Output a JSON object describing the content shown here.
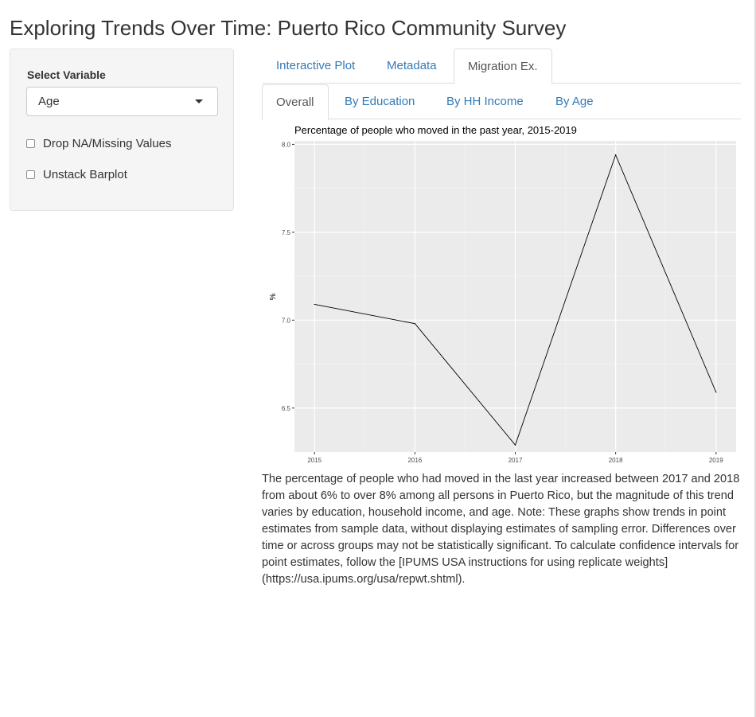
{
  "page": {
    "title": "Exploring Trends Over Time: Puerto Rico Community Survey"
  },
  "sidebar": {
    "select_label": "Select Variable",
    "selected_variable": "Age",
    "checkboxes": [
      {
        "label": "Drop NA/Missing Values",
        "checked": false
      },
      {
        "label": "Unstack Barplot",
        "checked": false
      }
    ]
  },
  "tabs": {
    "main": [
      {
        "label": "Interactive Plot",
        "active": false
      },
      {
        "label": "Metadata",
        "active": false
      },
      {
        "label": "Migration Ex.",
        "active": true
      }
    ],
    "sub": [
      {
        "label": "Overall",
        "active": true
      },
      {
        "label": "By Education",
        "active": false
      },
      {
        "label": "By HH Income",
        "active": false
      },
      {
        "label": "By Age",
        "active": false
      }
    ]
  },
  "chart_data": {
    "type": "line",
    "title": "Percentage of people who moved in the past year, 2015-2019",
    "xlabel": "",
    "ylabel": "%",
    "x": [
      2015,
      2016,
      2017,
      2018,
      2019
    ],
    "values": [
      7.09,
      6.98,
      6.29,
      7.94,
      6.59
    ],
    "xlim": [
      2014.8,
      2019.2
    ],
    "ylim": [
      6.25,
      8.02
    ],
    "x_ticks": [
      "2015",
      "2016",
      "2017",
      "2018",
      "2019"
    ],
    "y_ticks": [
      "6.5",
      "7.0",
      "7.5",
      "8.0"
    ],
    "grid": true,
    "panel_background": "#ebebeb",
    "line_color": "#000000"
  },
  "description": "The percentage of people who had moved in the last year increased between 2017 and 2018 from about 6% to over 8% among all persons in Puerto Rico, but the magnitude of this trend varies by education, household income, and age. Note: These graphs show trends in point estimates from sample data, without displaying estimates of sampling error. Differences over time or across groups may not be statistically significant. To calculate confidence intervals for point estimates, follow the [IPUMS USA instructions for using replicate weights](https://usa.ipums.org/usa/repwt.shtml)."
}
